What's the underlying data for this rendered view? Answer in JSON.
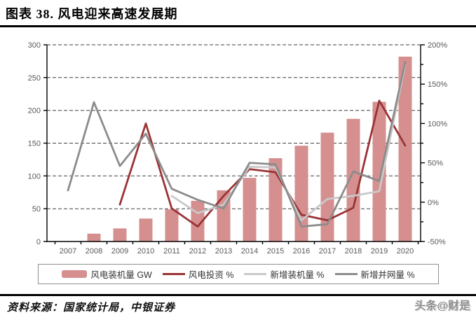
{
  "header": {
    "title": "图表 38. 风电迎来高速发展期"
  },
  "footer": {
    "source": "资料来源：国家统计局，中银证券",
    "watermark": "头条@财是"
  },
  "colors": {
    "bar": "#D68F8F",
    "investment_line": "#9A3335",
    "new_installed_line": "#C9C9C9",
    "new_grid_line": "#8C8C8C",
    "axis_text": "#595959",
    "grid_line": "#3F3F3F"
  },
  "chart_data": {
    "type": "bar+line",
    "title": "",
    "categories": [
      "2007",
      "2008",
      "2009",
      "2010",
      "2011",
      "2012",
      "2013",
      "2014",
      "2015",
      "2016",
      "2017",
      "2018",
      "2019",
      "2020"
    ],
    "left_axis": {
      "min": 0,
      "max": 300,
      "step": 50,
      "tick_labels": [
        "0",
        "50",
        "100",
        "150",
        "200",
        "250",
        "300"
      ]
    },
    "right_axis": {
      "min": -50,
      "max": 200,
      "step": 50,
      "minor_step": 25,
      "suffix": "%",
      "tick_labels": [
        "-50%",
        "0%",
        "50%",
        "100%",
        "150%",
        "200%"
      ]
    },
    "grid": "horizontal-dashed",
    "legend_position": "bottom",
    "series": [
      {
        "id": "installed-capacity",
        "name": "风电装机量 GW",
        "type": "bar",
        "axis": "left",
        "color": "#D68F8F",
        "values": [
          null,
          12,
          20,
          35,
          49,
          62,
          78,
          97,
          127,
          146,
          166,
          187,
          213,
          282
        ]
      },
      {
        "id": "investment-growth",
        "name": "风电投资 %",
        "type": "line",
        "axis": "right",
        "color": "#9A3335",
        "values": [
          null,
          null,
          -3,
          100,
          -8,
          -31,
          8,
          42,
          38,
          -16,
          -23,
          -7,
          129,
          72
        ]
      },
      {
        "id": "new-installed-growth",
        "name": "新增装机量 %",
        "type": "line",
        "axis": "right",
        "color": "#C9C9C9",
        "values": [
          null,
          null,
          null,
          null,
          8,
          -14,
          -3,
          45,
          44,
          -23,
          4,
          8,
          14,
          175
        ]
      },
      {
        "id": "new-grid-connected-growth",
        "name": "新增并网量 %",
        "type": "line",
        "axis": "right",
        "color": "#8C8C8C",
        "values": [
          15,
          127,
          46,
          87,
          17,
          3,
          -8,
          50,
          48,
          -31,
          -28,
          39,
          27,
          178
        ]
      }
    ]
  }
}
